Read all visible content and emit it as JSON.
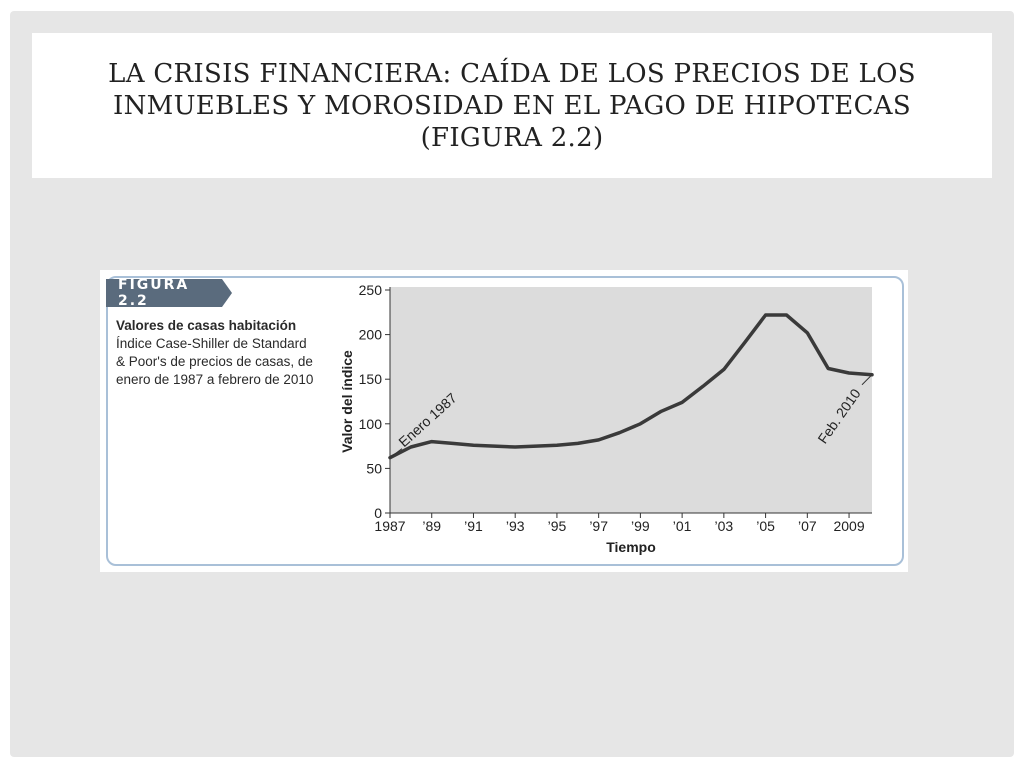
{
  "slide": {
    "title_lines": [
      "LA CRISIS FINANCIERA: CAÍDA DE LOS PRECIOS DE LOS",
      "INMUEBLES Y MOROSIDAD EN EL PAGO DE HIPOTECAS",
      "(FIGURA 2.2)"
    ]
  },
  "figure": {
    "label": "FIGURA 2.2",
    "caption_title": "Valores de casas habitación",
    "caption_body": "Índice Case-Shiller de Standard & Poor's de precios de casas, de enero de 1987 a febrero de 2010"
  },
  "colors": {
    "line": "#3a3a3a",
    "plot_bg": "#dcdcdc",
    "frame": "#a9c0d8",
    "label_bg": "#5a6b7d"
  },
  "chart_data": {
    "type": "line",
    "xlabel": "Tiempo",
    "ylabel": "Valor del índice",
    "xlim": [
      1987,
      2010.1
    ],
    "ylim": [
      0,
      250
    ],
    "yticks": [
      0,
      50,
      100,
      150,
      200,
      250
    ],
    "xticks": [
      {
        "value": 1987,
        "label": "1987"
      },
      {
        "value": 1989,
        "label": "’89"
      },
      {
        "value": 1991,
        "label": "’91"
      },
      {
        "value": 1993,
        "label": "’93"
      },
      {
        "value": 1995,
        "label": "’95"
      },
      {
        "value": 1997,
        "label": "’97"
      },
      {
        "value": 1999,
        "label": "’99"
      },
      {
        "value": 2001,
        "label": "’01"
      },
      {
        "value": 2003,
        "label": "’03"
      },
      {
        "value": 2005,
        "label": "’05"
      },
      {
        "value": 2007,
        "label": "’07"
      },
      {
        "value": 2009,
        "label": "2009"
      }
    ],
    "x": [
      1987,
      1988,
      1989,
      1990,
      1991,
      1992,
      1993,
      1994,
      1995,
      1996,
      1997,
      1998,
      1999,
      2000,
      2001,
      2002,
      2003,
      2004,
      2005,
      2006,
      2007,
      2008,
      2009,
      2010.1
    ],
    "values": [
      62,
      74,
      80,
      78,
      76,
      75,
      74,
      75,
      76,
      78,
      82,
      90,
      100,
      114,
      124,
      142,
      161,
      191,
      222,
      222,
      202,
      162,
      157,
      155
    ],
    "annotations": [
      {
        "text": "Enero 1987",
        "x": 1987,
        "y": 62
      },
      {
        "text": "Feb. 2010",
        "x": 2010.1,
        "y": 155
      }
    ]
  }
}
